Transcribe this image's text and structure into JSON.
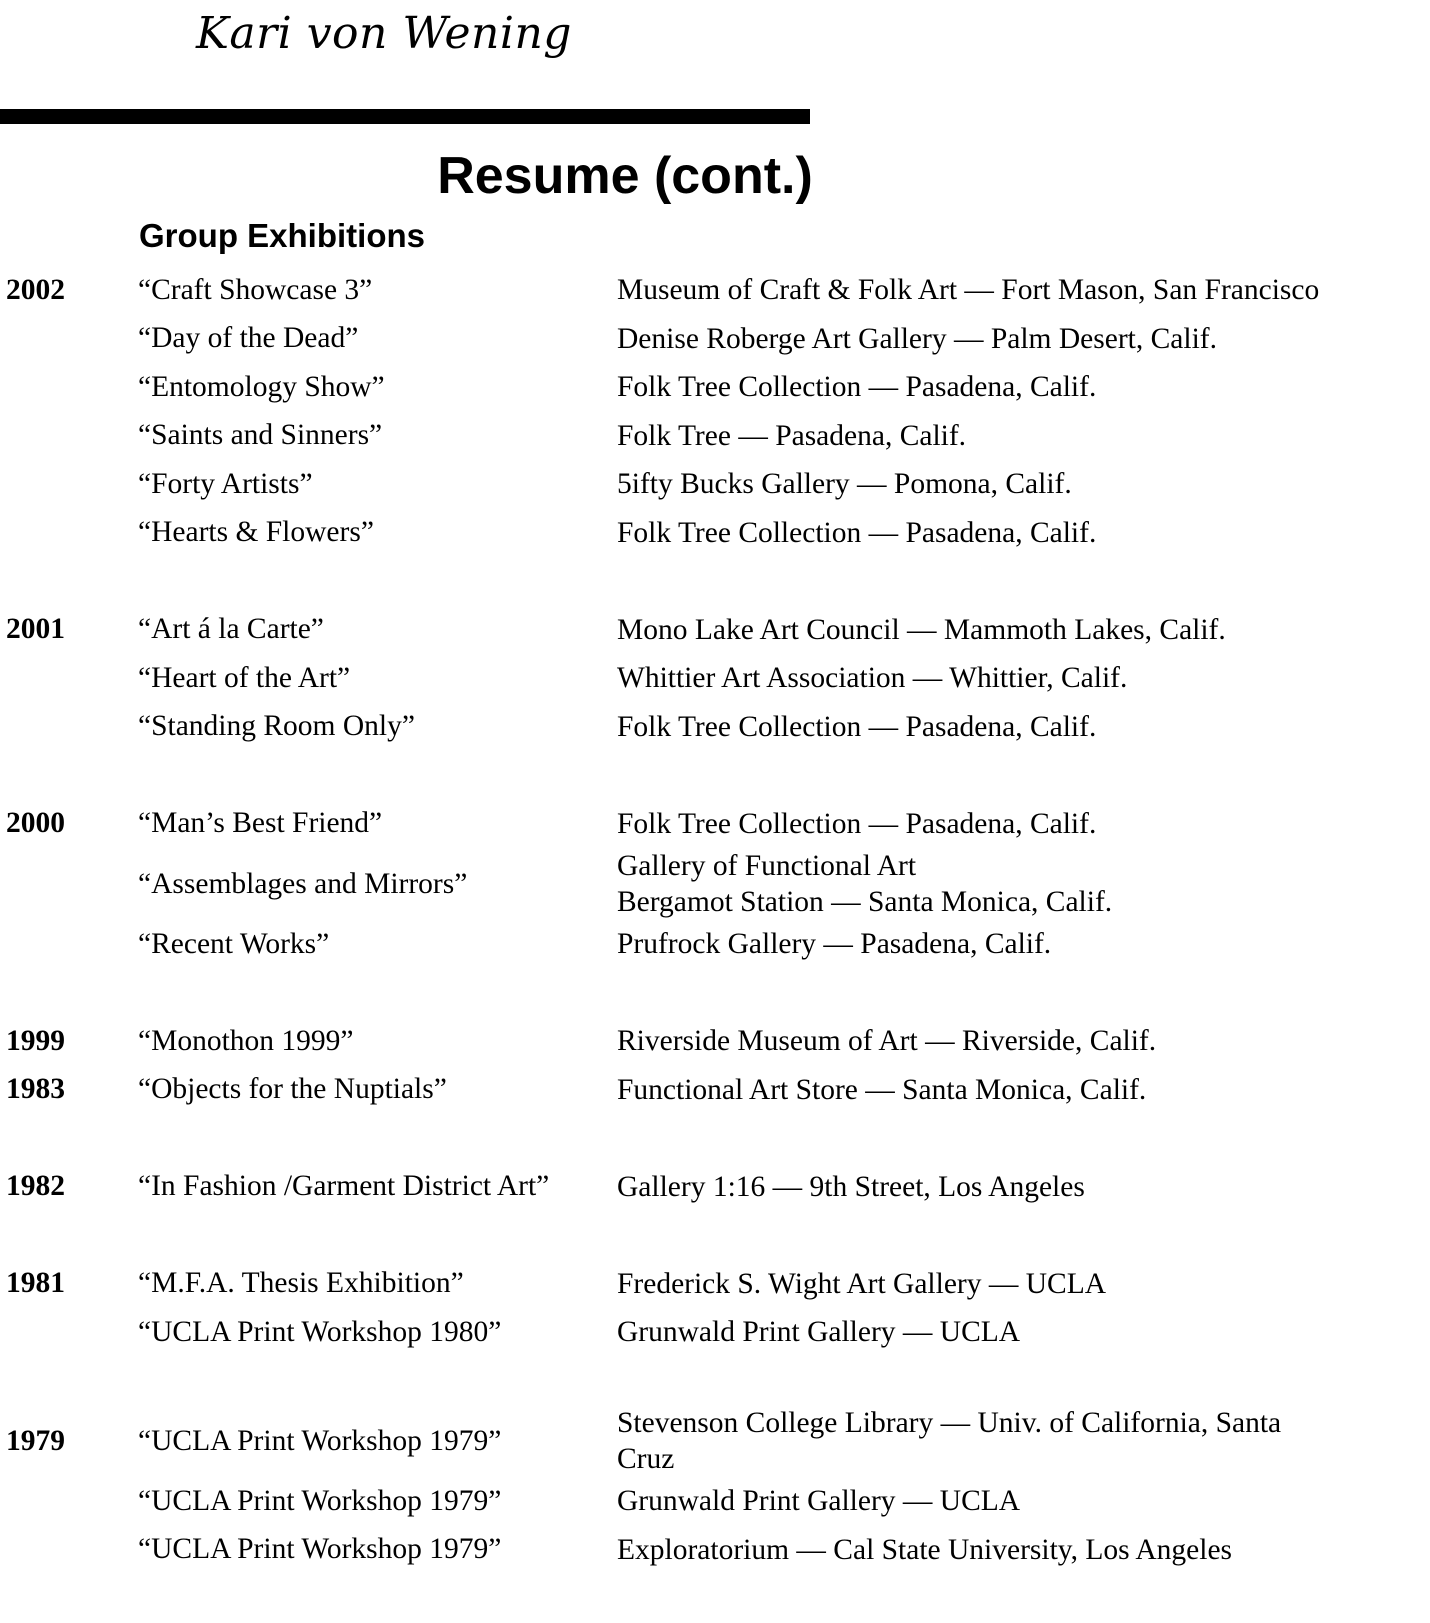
{
  "header": {
    "name": "Kari von Wening",
    "title": "Resume (cont.)",
    "section": "Group Exhibitions"
  },
  "groups": [
    {
      "rows": [
        {
          "year": "2002",
          "show": "“Craft Showcase 3”",
          "venue": [
            "Museum of Craft & Folk Art — Fort Mason, San Francisco"
          ]
        },
        {
          "year": "",
          "show": "“Day of the Dead”",
          "venue": [
            "Denise Roberge Art Gallery — Palm Desert, Calif."
          ]
        },
        {
          "year": "",
          "show": "“Entomology Show”",
          "venue": [
            "Folk Tree Collection — Pasadena, Calif."
          ]
        },
        {
          "year": "",
          "show": "“Saints and Sinners”",
          "venue": [
            "Folk Tree — Pasadena, Calif."
          ]
        },
        {
          "year": "",
          "show": "“Forty Artists”",
          "venue": [
            "5ifty Bucks Gallery — Pomona, Calif."
          ]
        },
        {
          "year": "",
          "show": "“Hearts & Flowers”",
          "venue": [
            "Folk Tree Collection — Pasadena, Calif."
          ]
        }
      ]
    },
    {
      "rows": [
        {
          "year": "2001",
          "show": "“Art á la Carte”",
          "venue": [
            "Mono Lake Art Council — Mammoth Lakes, Calif."
          ]
        },
        {
          "year": "",
          "show": "“Heart of the Art”",
          "venue": [
            "Whittier Art Association — Whittier, Calif."
          ]
        },
        {
          "year": "",
          "show": "“Standing Room Only”",
          "venue": [
            "Folk Tree Collection — Pasadena, Calif."
          ]
        }
      ]
    },
    {
      "rows": [
        {
          "year": "2000",
          "show": "“Man’s Best Friend”",
          "venue": [
            "Folk Tree Collection — Pasadena, Calif."
          ]
        },
        {
          "year": "",
          "show": "“Assemblages and Mirrors”",
          "venue": [
            "Gallery of Functional Art",
            "Bergamot Station — Santa Monica, Calif."
          ]
        },
        {
          "year": "",
          "show": "“Recent Works”",
          "venue": [
            "Prufrock Gallery — Pasadena, Calif."
          ]
        }
      ]
    },
    {
      "rows": [
        {
          "year": "1999",
          "show": "“Monothon 1999”",
          "venue": [
            "Riverside Museum of Art — Riverside, Calif."
          ]
        },
        {
          "year": "1983",
          "show": "“Objects for the Nuptials”",
          "venue": [
            "Functional Art Store — Santa Monica, Calif."
          ]
        }
      ]
    },
    {
      "rows": [
        {
          "year": "1982",
          "show": "“In Fashion /Garment District Art”",
          "venue": [
            "Gallery 1:16 — 9th Street, Los Angeles"
          ]
        }
      ]
    },
    {
      "rows": [
        {
          "year": "1981",
          "show": "“M.F.A. Thesis Exhibition”",
          "venue": [
            "Frederick S. Wight Art Gallery — UCLA"
          ]
        },
        {
          "year": "",
          "show": "“UCLA Print Workshop 1980”",
          "venue": [
            "Grunwald Print Gallery — UCLA"
          ]
        }
      ]
    },
    {
      "rows": [
        {
          "year": "1979",
          "show": "“UCLA Print Workshop 1979”",
          "venue": [
            "Stevenson College Library — Univ. of California, Santa",
            "Cruz"
          ]
        },
        {
          "year": "",
          "show": "“UCLA Print Workshop 1979”",
          "venue": [
            "Grunwald Print Gallery — UCLA"
          ]
        },
        {
          "year": "",
          "show": "“UCLA Print Workshop 1979”",
          "venue": [
            "Exploratorium — Cal State University, Los Angeles"
          ]
        }
      ]
    }
  ]
}
